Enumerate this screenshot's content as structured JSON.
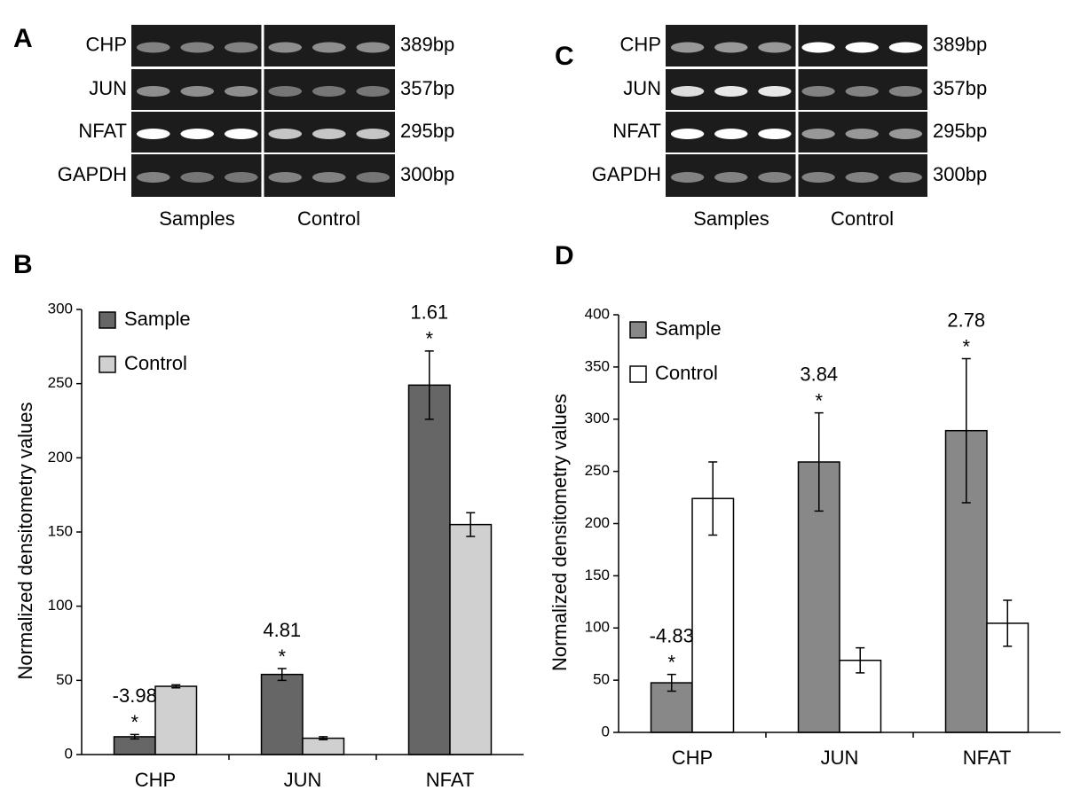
{
  "gels": [
    {
      "letter": "A",
      "genes": [
        "CHP",
        "JUN",
        "NFAT",
        "GAPDH"
      ],
      "sizes": [
        "389bp",
        "357bp",
        "295bp",
        "300bp"
      ],
      "groups": [
        "Samples",
        "Control"
      ]
    },
    {
      "letter": "C",
      "genes": [
        "CHP",
        "JUN",
        "NFAT",
        "GAPDH"
      ],
      "sizes": [
        "389bp",
        "357bp",
        "295bp",
        "300bp"
      ],
      "groups": [
        "Samples",
        "Control"
      ]
    }
  ],
  "chart_data": [
    {
      "type": "bar",
      "letter": "B",
      "ylabel": "Normalized densitometry values",
      "categories": [
        "CHP",
        "JUN",
        "NFAT"
      ],
      "series": [
        {
          "name": "Sample",
          "color": "#666666",
          "values": [
            12,
            54,
            249
          ],
          "errors": [
            1.5,
            4,
            23
          ]
        },
        {
          "name": "Control",
          "color": "#d0d0d0",
          "values": [
            46,
            11,
            155
          ],
          "errors": [
            1,
            1,
            8
          ]
        }
      ],
      "annotations": [
        "-3.98",
        "4.81",
        "1.61"
      ],
      "significance": "*",
      "ylim": [
        0,
        300
      ],
      "yticks": [
        0,
        50,
        100,
        150,
        200,
        250,
        300
      ],
      "legend": "top-left"
    },
    {
      "type": "bar",
      "letter": "D",
      "ylabel": "Normalized densitometry values",
      "categories": [
        "CHP",
        "JUN",
        "NFAT"
      ],
      "series": [
        {
          "name": "Sample",
          "color": "#888888",
          "values": [
            47.5,
            259,
            289
          ],
          "errors": [
            8,
            47,
            69
          ]
        },
        {
          "name": "Control",
          "color": "#ffffff",
          "values": [
            224,
            69,
            104.5
          ],
          "errors": [
            35,
            12,
            22
          ]
        }
      ],
      "annotations": [
        "-4.83",
        "3.84",
        "2.78"
      ],
      "significance": "*",
      "ylim": [
        0,
        400
      ],
      "yticks": [
        0,
        50,
        100,
        150,
        200,
        250,
        300,
        350,
        400
      ],
      "legend": "top-left"
    }
  ]
}
